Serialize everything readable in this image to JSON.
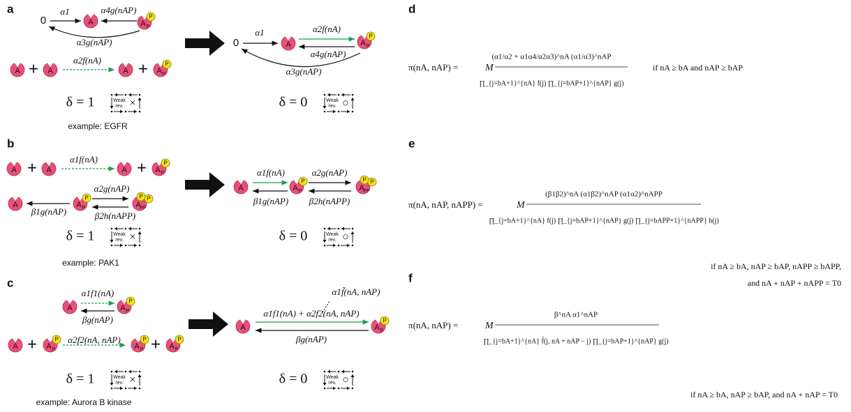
{
  "species": {
    "A": "A",
    "P_sub": "P",
    "PP_sub": "PP",
    "badge": "P"
  },
  "plus": "+",
  "weak_rev": {
    "line1": "Weak",
    "line2": "rev."
  },
  "symbols": {
    "no": "×",
    "yes": "○"
  },
  "panels": {
    "a": {
      "label": "a",
      "zero": "0",
      "k1": "α1",
      "k4": "α4g(nAP)",
      "k3": "α3g(nAP)",
      "k2": "α2f(nA)",
      "delta_left": "δ = 1",
      "example": "example: EGFR",
      "delta_right": "δ = 0"
    },
    "b": {
      "label": "b",
      "k1": "α1f(nA)",
      "k2": "α2g(nAP)",
      "b1": "β1g(nAP)",
      "b2": "β2h(nAPP)",
      "delta_left": "δ = 1",
      "example": "example: PAK1",
      "delta_right": "δ = 0"
    },
    "c": {
      "label": "c",
      "k1": "α1f1(nA)",
      "b": "βg(nAP)",
      "k2": "α2f2(nA, nAP)",
      "sum": "α1f1(nA) + α2f2(nA, nAP)",
      "tilde": "α1f̃(nA, nAP)",
      "delta_left": "δ = 1",
      "example": "example: Aurora B kinase",
      "delta_right": "δ = 0"
    },
    "d": {
      "label": "d",
      "lhs": "π(nA, nAP) =",
      "M": "M",
      "num": "(α1/α2 + α1α4/α2α3)^nA (α1/α3)^nAP",
      "den": "∏_{j=bA+1}^{nA} f(j)  ∏_{j=bAP+1}^{nAP} g(j)",
      "cond": "if nA ≥ bA and nAP ≥ bAP"
    },
    "e": {
      "label": "e",
      "lhs": "π(nA, nAP, nAPP) =",
      "M": "M",
      "num": "(β1β2)^nA (α1β2)^nAP (α1α2)^nAPP",
      "den": "∏_{j=bA+1}^{nA} f(j)  ∏_{j=bAP+1}^{nAP} g(j)  ∏_{j=bAPP+1}^{nAPP} h(j)",
      "cond1": "if nA ≥ bA, nAP ≥ bAP, nAPP ≥ bAPP,",
      "cond2": "and nA + nAP + nAPP = T0"
    },
    "f": {
      "label": "f",
      "lhs": "π(nA, nAP) =",
      "M": "M",
      "num": "β^nA α1^nAP",
      "den": "∏_{j=bA+1}^{nA} f̃(j, nA + nAP − j)  ∏_{j=bAP+1}^{nAP} g(j)",
      "cond": "if nA ≥ bA, nAP ≥ bAP,  and nA + nAP = T0"
    }
  }
}
